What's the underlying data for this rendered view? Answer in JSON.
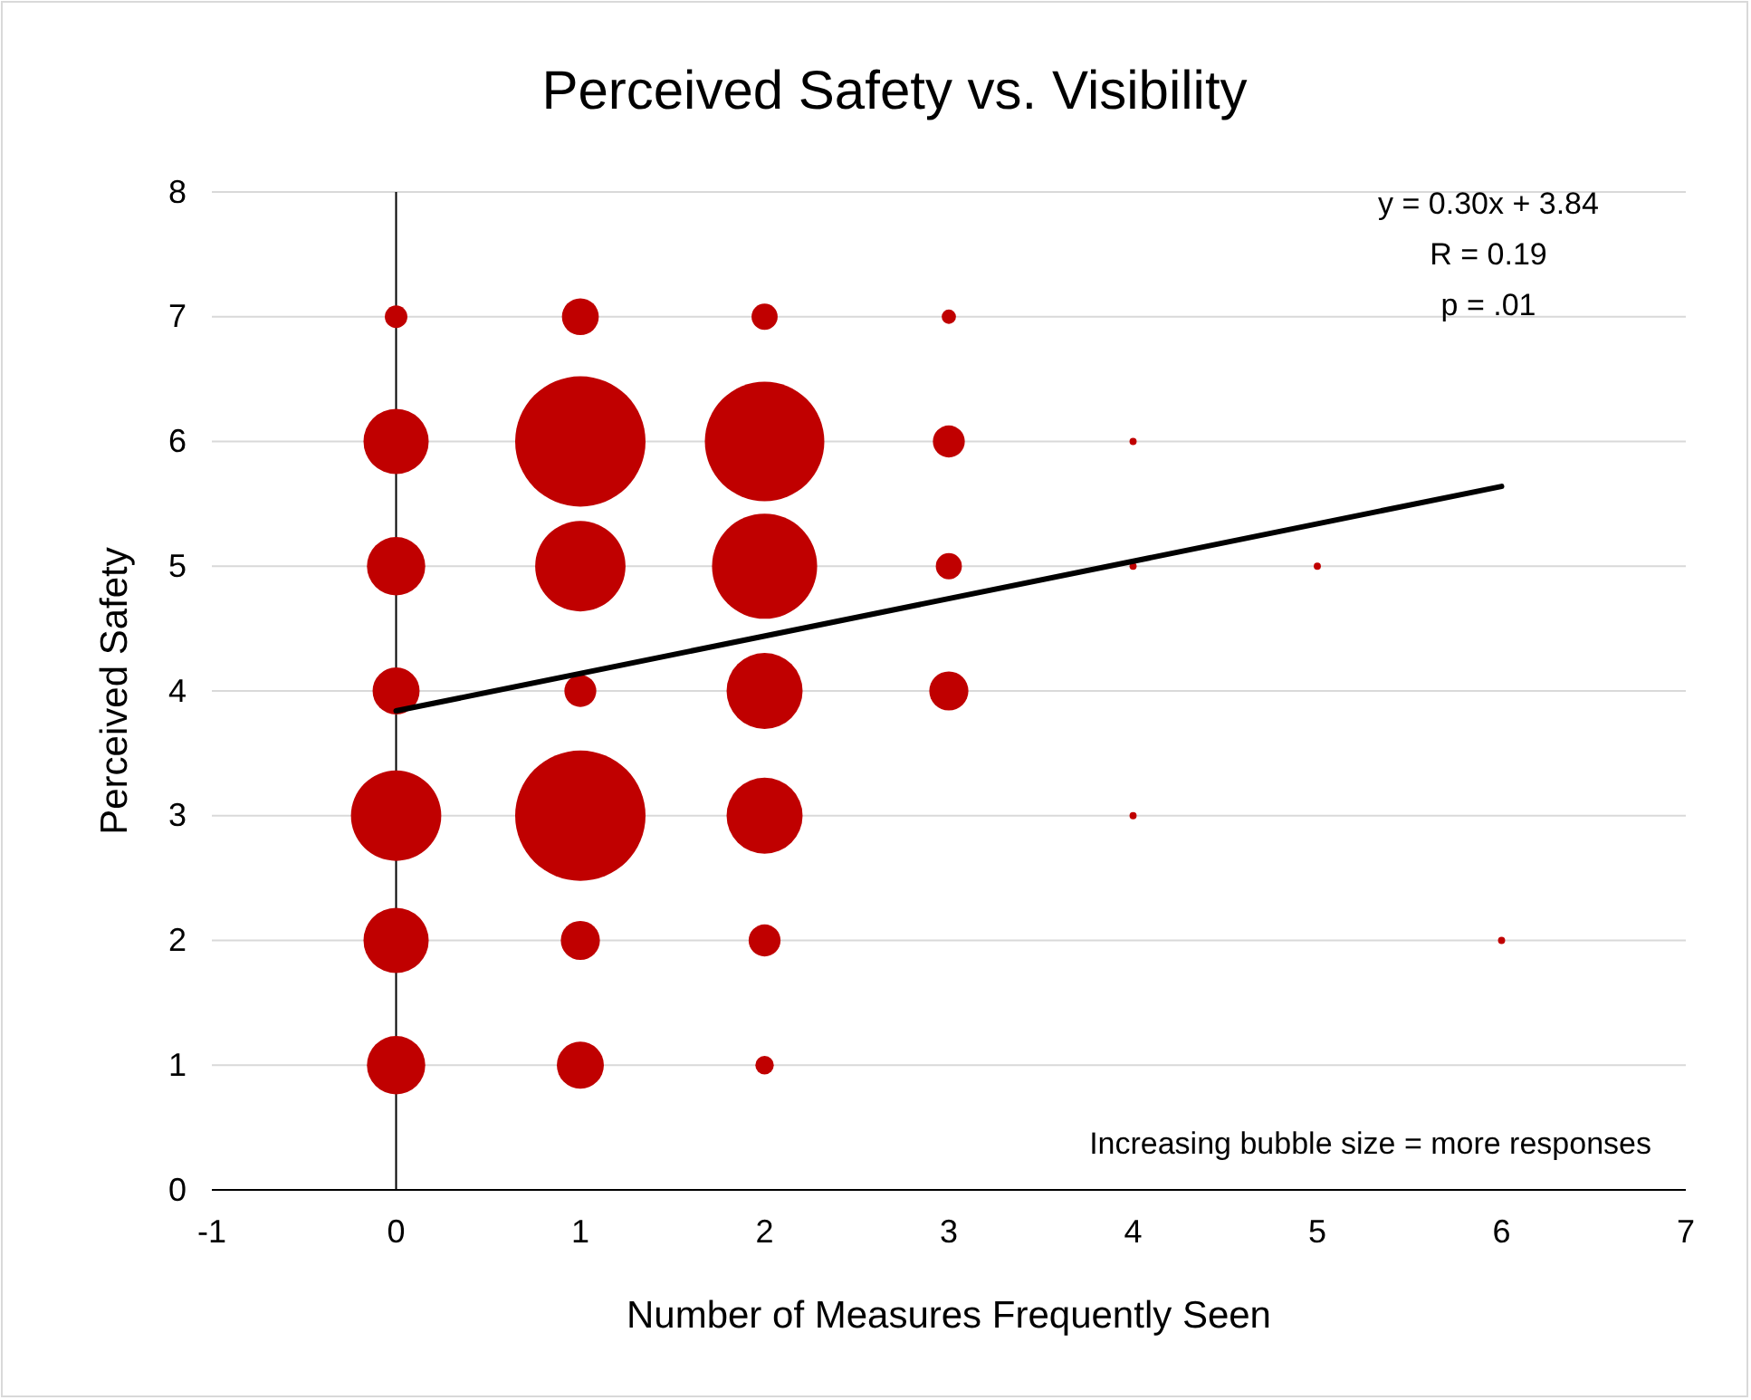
{
  "chart_data": {
    "type": "bubble",
    "title": "Perceived Safety vs. Visibility",
    "xlabel": "Number of Measures Frequently Seen",
    "ylabel": "Perceived Safety",
    "xlim": [
      -1,
      7
    ],
    "xticks": [
      -1,
      0,
      1,
      2,
      3,
      4,
      5,
      6,
      7
    ],
    "ylim": [
      0,
      8
    ],
    "yticks": [
      0,
      1,
      2,
      3,
      4,
      5,
      6,
      7,
      8
    ],
    "grid": "y",
    "annotations": [
      "y = 0.30x + 3.84",
      "R = 0.19",
      "p = .01",
      "Increasing bubble size = more responses"
    ],
    "series": [
      {
        "color": "#c00000",
        "x": [
          0,
          0,
          0,
          0,
          0,
          0,
          0,
          1,
          1,
          1,
          1,
          1,
          1,
          1,
          2,
          2,
          2,
          2,
          2,
          2,
          2,
          3,
          3,
          3,
          3,
          4,
          4,
          4,
          5,
          6
        ],
        "values": [
          7,
          6,
          5,
          4,
          3,
          2,
          1,
          7,
          6,
          5,
          4,
          3,
          2,
          1,
          7,
          6,
          5,
          4,
          3,
          2,
          1,
          7,
          6,
          5,
          4,
          6,
          5,
          3,
          5,
          2
        ],
        "sizes": [
          0.03,
          0.25,
          0.2,
          0.13,
          0.48,
          0.25,
          0.2,
          0.08,
          1,
          0.48,
          0.06,
          1,
          0.09,
          0.13,
          0.04,
          0.84,
          0.65,
          0.34,
          0.34,
          0.06,
          0.02,
          0.012,
          0.06,
          0.04,
          0.09,
          0.003,
          0.003,
          0.003,
          0.003,
          0.003
        ]
      },
      {
        "type": "line",
        "color": "#000000",
        "x": [
          0,
          6
        ],
        "values": [
          3.84,
          5.64
        ]
      }
    ]
  }
}
